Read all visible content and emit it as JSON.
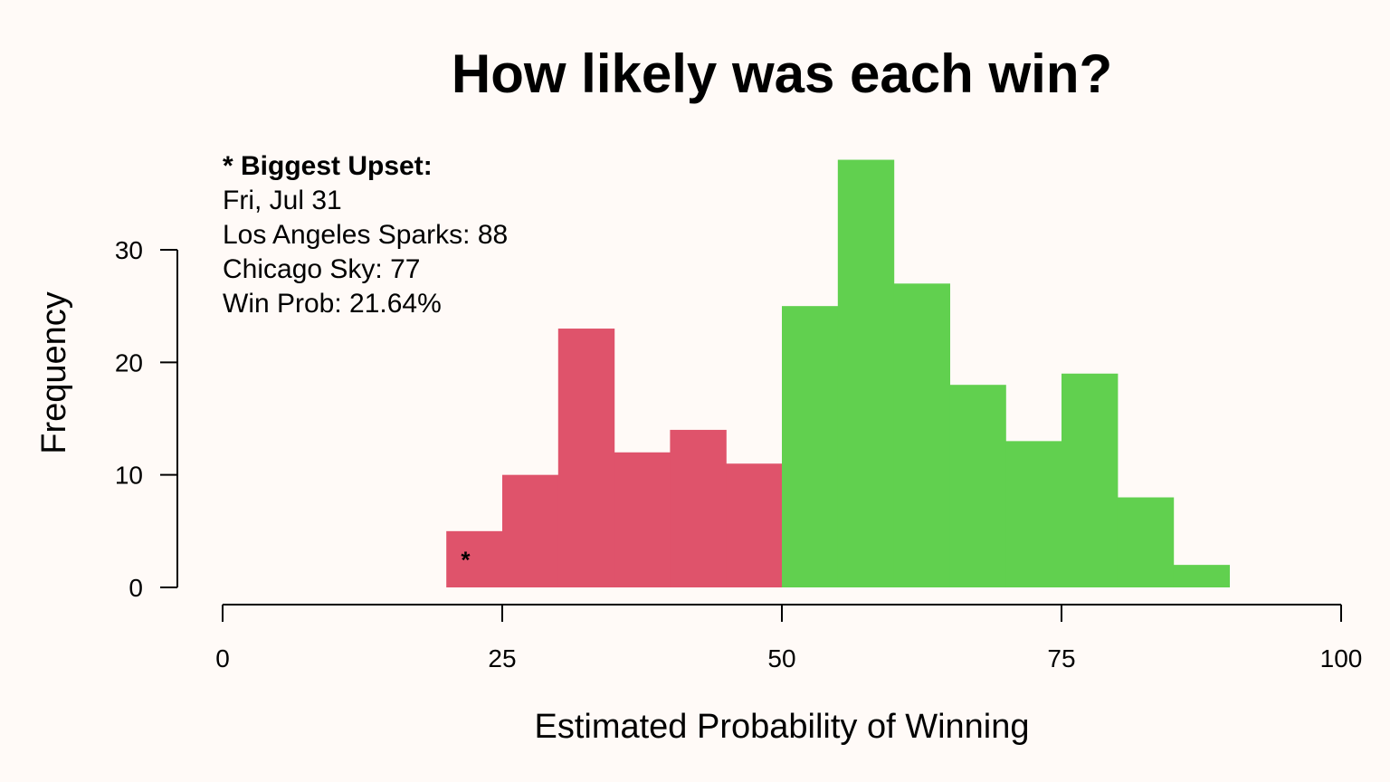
{
  "chart_data": {
    "type": "bar",
    "title": "How likely was each win?",
    "xlabel": "Estimated Probability of Winning",
    "ylabel": "Frequency",
    "bin_edges": [
      20,
      25,
      30,
      35,
      40,
      45,
      50,
      55,
      60,
      65,
      70,
      75,
      80,
      85,
      90
    ],
    "values": [
      5,
      10,
      23,
      12,
      14,
      11,
      25,
      38,
      27,
      18,
      13,
      19,
      8,
      2
    ],
    "colors": {
      "below_50": "#DF536B",
      "at_or_above_50": "#61D04F",
      "background": "#FFFAF7"
    },
    "xlim": [
      0,
      100
    ],
    "ylim": [
      0,
      30
    ],
    "x_ticks": [
      0,
      25,
      50,
      75,
      100
    ],
    "y_ticks": [
      0,
      10,
      20,
      30
    ],
    "grid": false,
    "marker": {
      "symbol": "*",
      "x": 21.64,
      "y": 2.7
    },
    "annotation": {
      "heading": "* Biggest Upset:",
      "lines": [
        "Fri, Jul 31",
        "Los Angeles Sparks: 88",
        "Chicago Sky: 77",
        "Win Prob: 21.64%"
      ]
    }
  }
}
